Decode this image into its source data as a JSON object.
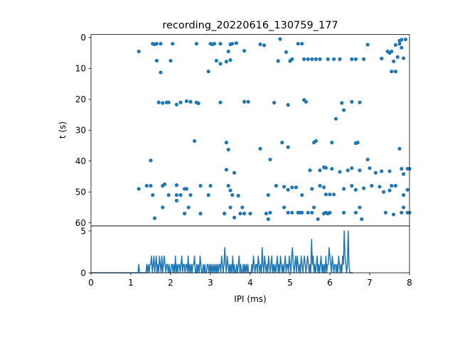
{
  "chart_data": [
    {
      "type": "scatter",
      "title": "recording_20220616_130759_177",
      "xlabel": "",
      "ylabel": "t (s)",
      "xlim": [
        0,
        8
      ],
      "ylim": [
        61,
        -1
      ],
      "yticks": [
        0,
        10,
        20,
        30,
        40,
        50,
        60
      ],
      "y_inverted": true,
      "marker_color": "#1f77b4",
      "series": [
        {
          "points": [
            [
              1.2,
              4.5
            ],
            [
              1.55,
              2
            ],
            [
              1.6,
              2.2
            ],
            [
              1.65,
              2
            ],
            [
              1.75,
              2
            ],
            [
              1.65,
              7.5
            ],
            [
              1.75,
              11.3
            ],
            [
              2.05,
              2
            ],
            [
              2.0,
              7.5
            ],
            [
              2.65,
              2
            ],
            [
              2.95,
              11
            ],
            [
              3.0,
              2
            ],
            [
              3.05,
              2.2
            ],
            [
              3.1,
              2
            ],
            [
              3.15,
              7.5
            ],
            [
              3.25,
              2
            ],
            [
              3.25,
              8.5
            ],
            [
              3.4,
              7.8
            ],
            [
              3.5,
              7.3
            ],
            [
              3.45,
              4.5
            ],
            [
              3.5,
              2.2
            ],
            [
              3.55,
              2
            ],
            [
              3.65,
              1.8
            ],
            [
              3.85,
              4.3
            ],
            [
              4.25,
              2.2
            ],
            [
              4.35,
              2.5
            ],
            [
              4.75,
              0.5
            ],
            [
              4.7,
              7.6
            ],
            [
              4.9,
              4.7
            ],
            [
              5.0,
              7.6
            ],
            [
              5.05,
              7
            ],
            [
              5.2,
              2
            ],
            [
              5.3,
              2
            ],
            [
              5.35,
              7
            ],
            [
              5.45,
              7
            ],
            [
              5.55,
              7
            ],
            [
              5.65,
              7
            ],
            [
              5.75,
              7
            ],
            [
              5.95,
              7
            ],
            [
              6.1,
              7
            ],
            [
              6.25,
              7
            ],
            [
              6.55,
              7
            ],
            [
              6.65,
              7
            ],
            [
              6.85,
              7
            ],
            [
              6.95,
              2.3
            ],
            [
              7.3,
              6.8
            ],
            [
              7.45,
              4.5
            ],
            [
              7.5,
              5
            ],
            [
              7.55,
              4.5
            ],
            [
              7.65,
              2.4
            ],
            [
              7.6,
              7.7
            ],
            [
              7.55,
              11
            ],
            [
              7.65,
              11
            ],
            [
              7.7,
              6.3
            ],
            [
              7.75,
              2
            ],
            [
              7.75,
              1
            ],
            [
              7.8,
              3.3
            ],
            [
              7.85,
              6.7
            ],
            [
              7.8,
              0.7
            ],
            [
              7.9,
              0.6
            ],
            [
              1.7,
              21
            ],
            [
              1.8,
              21.2
            ],
            [
              1.9,
              21
            ],
            [
              1.95,
              21
            ],
            [
              2.15,
              21.7
            ],
            [
              2.25,
              21
            ],
            [
              2.4,
              20.6
            ],
            [
              2.5,
              20.8
            ],
            [
              2.65,
              21
            ],
            [
              2.7,
              21.3
            ],
            [
              3.25,
              21
            ],
            [
              3.85,
              20.8
            ],
            [
              3.95,
              20.8
            ],
            [
              4.6,
              21.1
            ],
            [
              4.95,
              21.8
            ],
            [
              5.35,
              20.2
            ],
            [
              5.4,
              20.8
            ],
            [
              6.3,
              21.2
            ],
            [
              6.35,
              23.5
            ],
            [
              6.55,
              20.8
            ],
            [
              6.75,
              21
            ],
            [
              6.15,
              26.3
            ],
            [
              2.6,
              33.5
            ],
            [
              1.5,
              39.8
            ],
            [
              3.4,
              34
            ],
            [
              3.45,
              36.3
            ],
            [
              4.25,
              36
            ],
            [
              4.8,
              34
            ],
            [
              4.95,
              35.5
            ],
            [
              5.6,
              34
            ],
            [
              5.65,
              33.5
            ],
            [
              6.05,
              34
            ],
            [
              6.65,
              34.2
            ],
            [
              6.7,
              34
            ],
            [
              7.75,
              36
            ],
            [
              6.95,
              39.5
            ],
            [
              7.15,
              43.8
            ],
            [
              4.5,
              39.5
            ],
            [
              3.4,
              42.8
            ],
            [
              3.6,
              43.8
            ],
            [
              5.5,
              43
            ],
            [
              5.75,
              43
            ],
            [
              5.85,
              42
            ],
            [
              5.9,
              42.2
            ],
            [
              6.05,
              42.5
            ],
            [
              6.25,
              43.5
            ],
            [
              6.45,
              43
            ],
            [
              6.55,
              42.3
            ],
            [
              6.75,
              43
            ],
            [
              7.0,
              42.3
            ],
            [
              7.3,
              43.3
            ],
            [
              7.5,
              43.3
            ],
            [
              7.8,
              42.5
            ],
            [
              7.85,
              44.2
            ],
            [
              7.95,
              42.5
            ],
            [
              8.0,
              42.5
            ],
            [
              1.2,
              49
            ],
            [
              1.4,
              48
            ],
            [
              1.5,
              48
            ],
            [
              1.55,
              51
            ],
            [
              1.8,
              48
            ],
            [
              1.85,
              47.5
            ],
            [
              1.95,
              51
            ],
            [
              2.15,
              47.8
            ],
            [
              2.15,
              51
            ],
            [
              2.25,
              51
            ],
            [
              2.35,
              49
            ],
            [
              2.4,
              49
            ],
            [
              2.5,
              51
            ],
            [
              2.75,
              48
            ],
            [
              2.95,
              51
            ],
            [
              3.0,
              48
            ],
            [
              3.45,
              48
            ],
            [
              3.5,
              49.5
            ],
            [
              3.55,
              51
            ],
            [
              3.7,
              51.2
            ],
            [
              4.45,
              51
            ],
            [
              4.65,
              48
            ],
            [
              4.85,
              48.3
            ],
            [
              4.95,
              49.3
            ],
            [
              5.05,
              48.5
            ],
            [
              5.15,
              48.5
            ],
            [
              5.3,
              51
            ],
            [
              5.55,
              49
            ],
            [
              5.75,
              48
            ],
            [
              5.85,
              48.5
            ],
            [
              5.9,
              50.8
            ],
            [
              6.0,
              50.8
            ],
            [
              6.1,
              50.8
            ],
            [
              6.35,
              49
            ],
            [
              6.55,
              48
            ],
            [
              6.65,
              49.3
            ],
            [
              6.85,
              48.8
            ],
            [
              7.05,
              48
            ],
            [
              7.25,
              48.3
            ],
            [
              7.35,
              50
            ],
            [
              7.5,
              49.5
            ],
            [
              7.55,
              48
            ],
            [
              7.65,
              48
            ],
            [
              7.85,
              51
            ],
            [
              7.95,
              49.3
            ],
            [
              1.8,
              55
            ],
            [
              1.6,
              58.5
            ],
            [
              2.15,
              52.8
            ],
            [
              2.35,
              57
            ],
            [
              2.45,
              55
            ],
            [
              2.75,
              57
            ],
            [
              3.35,
              57
            ],
            [
              3.5,
              55
            ],
            [
              3.6,
              58.3
            ],
            [
              3.75,
              57
            ],
            [
              3.8,
              55
            ],
            [
              3.85,
              57
            ],
            [
              4.0,
              57
            ],
            [
              4.4,
              57
            ],
            [
              4.45,
              58.8
            ],
            [
              4.5,
              56.7
            ],
            [
              4.85,
              55
            ],
            [
              4.95,
              56.7
            ],
            [
              5.05,
              56.7
            ],
            [
              5.2,
              56.7
            ],
            [
              5.25,
              56.7
            ],
            [
              5.3,
              56.7
            ],
            [
              5.45,
              56.7
            ],
            [
              5.55,
              56.7
            ],
            [
              5.6,
              55
            ],
            [
              5.7,
              58.8
            ],
            [
              5.85,
              57
            ],
            [
              5.9,
              56.7
            ],
            [
              5.95,
              57
            ],
            [
              6.0,
              56.7
            ],
            [
              6.35,
              56.7
            ],
            [
              6.65,
              56.7
            ],
            [
              6.8,
              58.8
            ],
            [
              6.75,
              55
            ],
            [
              7.4,
              56.7
            ],
            [
              7.6,
              57.3
            ],
            [
              7.8,
              56.7
            ],
            [
              7.85,
              55
            ],
            [
              7.95,
              56.7
            ],
            [
              8.0,
              56.7
            ]
          ]
        }
      ]
    },
    {
      "type": "line",
      "xlabel": "IPI (ms)",
      "ylabel": "",
      "xlim": [
        0,
        8
      ],
      "ylim": [
        0,
        5.6
      ],
      "xticks": [
        0,
        1,
        2,
        3,
        4,
        5,
        6,
        7,
        8
      ],
      "yticks": [
        0,
        5
      ],
      "line_color": "#1f77b4",
      "x_start": 0.0,
      "x_step": 0.02,
      "y": [
        0,
        0,
        0,
        0,
        0,
        0,
        0,
        0,
        0,
        0,
        0,
        0,
        0,
        0,
        0,
        0,
        0,
        0,
        0,
        0,
        0,
        0,
        0,
        0,
        0,
        0,
        0,
        0,
        0,
        0,
        0,
        0,
        0,
        0,
        0,
        0,
        0,
        0,
        0,
        0,
        0,
        0,
        0,
        0,
        0,
        0,
        0,
        0,
        0,
        0,
        0,
        0,
        0,
        0,
        0,
        0,
        0,
        0,
        0,
        0,
        1,
        0,
        0,
        0,
        0,
        0,
        0,
        0,
        0,
        0,
        1,
        0,
        1,
        0,
        1,
        1,
        2,
        0,
        1,
        2,
        0,
        1,
        2,
        0,
        1,
        0,
        2,
        1,
        0,
        2,
        0,
        1,
        2,
        1,
        0,
        1,
        1,
        0,
        1,
        0,
        0,
        1,
        1,
        0,
        1,
        0,
        2,
        0,
        1,
        0,
        1,
        1,
        0,
        1,
        2,
        0,
        1,
        1,
        0,
        1,
        1,
        0,
        2,
        0,
        1,
        0,
        1,
        0,
        1,
        1,
        2,
        0,
        0,
        1,
        0,
        1,
        0,
        2,
        1,
        0,
        0,
        1,
        0,
        1,
        0,
        0,
        1,
        1,
        0,
        1,
        0,
        1,
        0,
        1,
        0,
        1,
        0,
        1,
        0,
        1,
        0,
        1,
        1,
        0,
        2,
        1,
        0,
        1,
        3,
        1,
        0,
        2,
        1,
        0,
        1,
        0,
        1,
        0,
        2,
        0,
        1,
        0,
        0,
        1,
        0,
        1,
        2,
        0,
        1,
        0,
        0,
        1,
        0,
        1,
        0,
        1,
        0,
        1,
        0,
        0,
        0,
        0,
        1,
        0,
        2,
        1,
        0,
        1,
        1,
        0,
        2,
        1,
        0,
        1,
        0,
        3,
        1,
        0,
        2,
        1,
        0,
        1,
        0,
        2,
        1,
        0,
        1,
        2,
        0,
        1,
        0,
        1,
        0,
        1,
        2,
        0,
        1,
        0,
        2,
        1,
        0,
        1,
        0,
        1,
        2,
        0,
        1,
        1,
        0,
        2,
        1,
        0,
        2,
        3,
        1,
        0,
        1,
        2,
        0,
        2,
        1,
        0,
        1,
        0,
        2,
        1,
        0,
        1,
        2,
        1,
        0,
        1,
        2,
        1,
        0,
        1,
        0,
        4,
        1,
        2,
        0,
        1,
        0,
        1,
        2,
        0,
        1,
        0,
        1,
        2,
        0,
        1,
        0,
        1,
        0,
        2,
        0,
        1,
        1,
        3,
        2,
        1,
        0,
        2,
        1,
        0,
        1,
        1,
        0,
        1,
        0,
        2,
        1,
        0,
        1,
        0,
        2,
        1,
        5,
        2,
        1,
        0,
        1,
        5,
        1,
        0,
        0,
        0,
        0,
        0
      ]
    }
  ],
  "colors": {
    "series": "#1f77b4",
    "axes": "#000000",
    "background": "#ffffff"
  }
}
